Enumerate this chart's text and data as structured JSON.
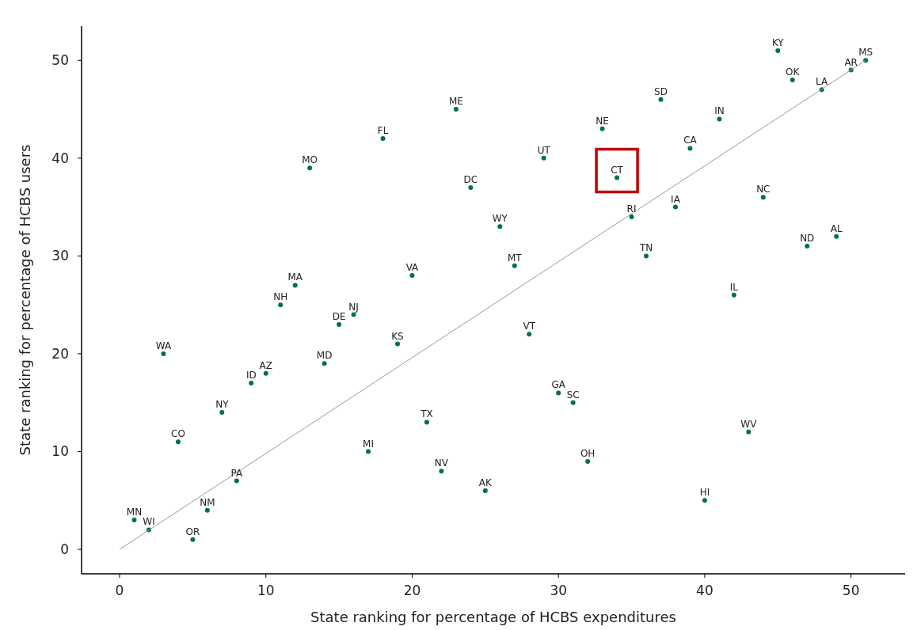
{
  "chart_data": {
    "type": "scatter",
    "xlabel": "State ranking for percentage of HCBS expenditures",
    "ylabel": "State ranking for percentage of HCBS users",
    "xlim": [
      -2.6,
      53.7
    ],
    "ylim": [
      -2.5,
      53.5
    ],
    "xticks": [
      0,
      10,
      20,
      30,
      40,
      50
    ],
    "yticks": [
      0,
      10,
      20,
      30,
      40,
      50
    ],
    "series": [
      {
        "marker": "circle",
        "color": "#00704f",
        "x": [
          51,
          45,
          46,
          50,
          48,
          37,
          23,
          41,
          33,
          18,
          39,
          29,
          13,
          34,
          24,
          44,
          38,
          35,
          26,
          49,
          47,
          36,
          27,
          20,
          12,
          42,
          11,
          16,
          15,
          28,
          19,
          3,
          14,
          10,
          9,
          30,
          31,
          7,
          21,
          43,
          4,
          17,
          32,
          22,
          8,
          25,
          40,
          6,
          1,
          2,
          5
        ],
        "values": [
          50,
          51,
          48,
          49,
          47,
          46,
          45,
          44,
          43,
          42,
          41,
          40,
          39,
          38,
          37,
          36,
          35,
          34,
          33,
          32,
          31,
          30,
          29,
          28,
          27,
          26,
          25,
          24,
          23,
          22,
          21,
          20,
          19,
          18,
          17,
          16,
          15,
          14,
          13,
          12,
          11,
          10,
          9,
          8,
          7,
          6,
          5,
          4,
          3,
          2,
          1
        ]
      },
      {
        "type": "line",
        "color": "#9a9a9a",
        "x": [
          0,
          51
        ],
        "values": [
          0,
          50
        ]
      }
    ],
    "annotations": [
      {
        "text": "MS",
        "x": 51,
        "y": 50
      },
      {
        "text": "KY",
        "x": 45,
        "y": 51
      },
      {
        "text": "OK",
        "x": 46,
        "y": 48
      },
      {
        "text": "AR",
        "x": 50,
        "y": 49
      },
      {
        "text": "LA",
        "x": 48,
        "y": 47
      },
      {
        "text": "SD",
        "x": 37,
        "y": 46
      },
      {
        "text": "ME",
        "x": 23,
        "y": 45
      },
      {
        "text": "IN",
        "x": 41,
        "y": 44
      },
      {
        "text": "NE",
        "x": 33,
        "y": 43
      },
      {
        "text": "FL",
        "x": 18,
        "y": 42
      },
      {
        "text": "CA",
        "x": 39,
        "y": 41
      },
      {
        "text": "UT",
        "x": 29,
        "y": 40
      },
      {
        "text": "MO",
        "x": 13,
        "y": 39
      },
      {
        "text": "CT",
        "x": 34,
        "y": 38
      },
      {
        "text": "DC",
        "x": 24,
        "y": 37
      },
      {
        "text": "NC",
        "x": 44,
        "y": 36
      },
      {
        "text": "IA",
        "x": 38,
        "y": 35
      },
      {
        "text": "RI",
        "x": 35,
        "y": 34
      },
      {
        "text": "WY",
        "x": 26,
        "y": 33
      },
      {
        "text": "AL",
        "x": 49,
        "y": 32
      },
      {
        "text": "ND",
        "x": 47,
        "y": 31
      },
      {
        "text": "TN",
        "x": 36,
        "y": 30
      },
      {
        "text": "MT",
        "x": 27,
        "y": 29
      },
      {
        "text": "VA",
        "x": 20,
        "y": 28
      },
      {
        "text": "MA",
        "x": 12,
        "y": 27
      },
      {
        "text": "IL",
        "x": 42,
        "y": 26
      },
      {
        "text": "NH",
        "x": 11,
        "y": 25
      },
      {
        "text": "NJ",
        "x": 16,
        "y": 24
      },
      {
        "text": "DE",
        "x": 15,
        "y": 23
      },
      {
        "text": "VT",
        "x": 28,
        "y": 22
      },
      {
        "text": "KS",
        "x": 19,
        "y": 21
      },
      {
        "text": "WA",
        "x": 3,
        "y": 20
      },
      {
        "text": "MD",
        "x": 14,
        "y": 19
      },
      {
        "text": "AZ",
        "x": 10,
        "y": 18
      },
      {
        "text": "ID",
        "x": 9,
        "y": 17
      },
      {
        "text": "GA",
        "x": 30,
        "y": 16
      },
      {
        "text": "SC",
        "x": 31,
        "y": 15
      },
      {
        "text": "NY",
        "x": 7,
        "y": 14
      },
      {
        "text": "TX",
        "x": 21,
        "y": 13
      },
      {
        "text": "WV",
        "x": 43,
        "y": 12
      },
      {
        "text": "CO",
        "x": 4,
        "y": 11
      },
      {
        "text": "MI",
        "x": 17,
        "y": 10
      },
      {
        "text": "OH",
        "x": 32,
        "y": 9
      },
      {
        "text": "NV",
        "x": 22,
        "y": 8
      },
      {
        "text": "PA",
        "x": 8,
        "y": 7
      },
      {
        "text": "AK",
        "x": 25,
        "y": 6
      },
      {
        "text": "HI",
        "x": 40,
        "y": 5
      },
      {
        "text": "NM",
        "x": 6,
        "y": 4
      },
      {
        "text": "MN",
        "x": 1,
        "y": 3
      },
      {
        "text": "WI",
        "x": 2,
        "y": 2
      },
      {
        "text": "OR",
        "x": 5,
        "y": 1
      }
    ]
  }
}
